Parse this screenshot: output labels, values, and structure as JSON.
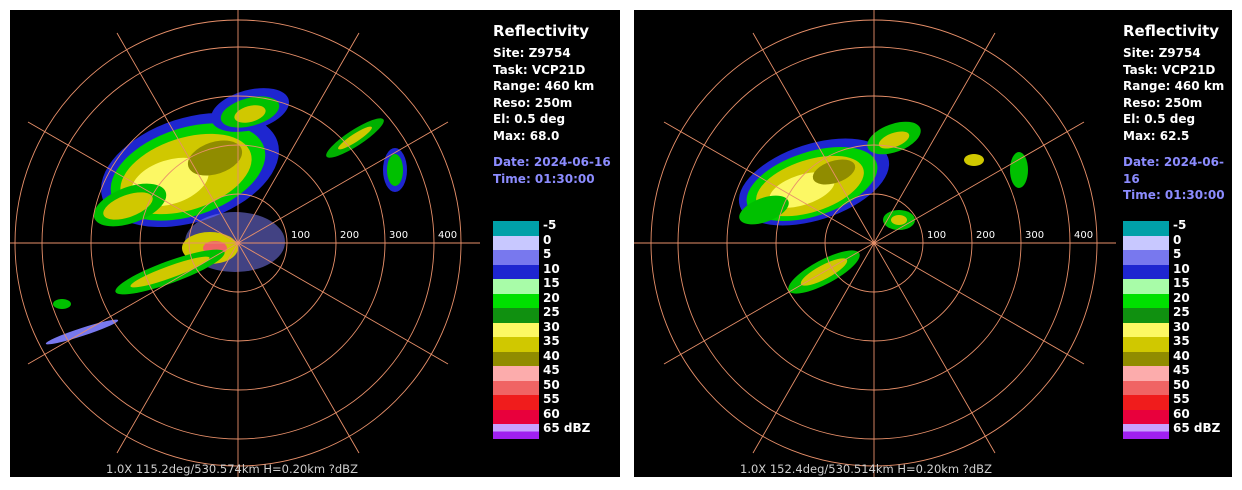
{
  "colors": {
    "background": "#000000",
    "range_rings": "#e8906a",
    "info_text": "#ffffff",
    "date_text": "#8c8cff"
  },
  "legend": {
    "unit": "dBZ",
    "entries": [
      {
        "label": "-5",
        "color": "#00a0a8"
      },
      {
        "label": "0",
        "color": "#c8c8ff"
      },
      {
        "label": "5",
        "color": "#7878ee"
      },
      {
        "label": "10",
        "color": "#1e26d0"
      },
      {
        "label": "15",
        "color": "#a8fca8"
      },
      {
        "label": "20",
        "color": "#00e000"
      },
      {
        "label": "25",
        "color": "#109010"
      },
      {
        "label": "30",
        "color": "#fcf864"
      },
      {
        "label": "35",
        "color": "#d0c800"
      },
      {
        "label": "40",
        "color": "#908c00"
      },
      {
        "label": "45",
        "color": "#fcacac"
      },
      {
        "label": "50",
        "color": "#f06464"
      },
      {
        "label": "55",
        "color": "#f01c1c"
      },
      {
        "label": "60",
        "color": "#e8003c"
      },
      {
        "label": "65 dBZ",
        "color": "#c8a0ff",
        "color2": "#a020f0"
      }
    ]
  },
  "panels": [
    {
      "product": "Reflectivity",
      "site": "Site: Z9754",
      "task": "Task: VCP21D",
      "range": "Range: 460 km",
      "reso": "Reso: 250m",
      "elev": "El: 0.5 deg",
      "max": "Max: 68.0",
      "date": "Date: 2024-06-16",
      "time": "Time: 01:30:00",
      "ring_labels": [
        "100",
        "200",
        "300",
        "400"
      ],
      "status": "1.0X 115.2deg/530.574km H=0.20km ?dBZ"
    },
    {
      "product": "Reflectivity",
      "site": "Site: Z9754",
      "task": "Task: VCP21D",
      "range": "Range: 460 km",
      "reso": "Reso: 250m",
      "elev": "El: 0.5 deg",
      "max": "Max: 62.5",
      "date": "Date: 2024-06-16",
      "time": "Time: 01:30:00",
      "ring_labels": [
        "100",
        "200",
        "300",
        "400"
      ],
      "status": "1.0X 152.4deg/530.514km H=0.20km ?dBZ"
    }
  ]
}
